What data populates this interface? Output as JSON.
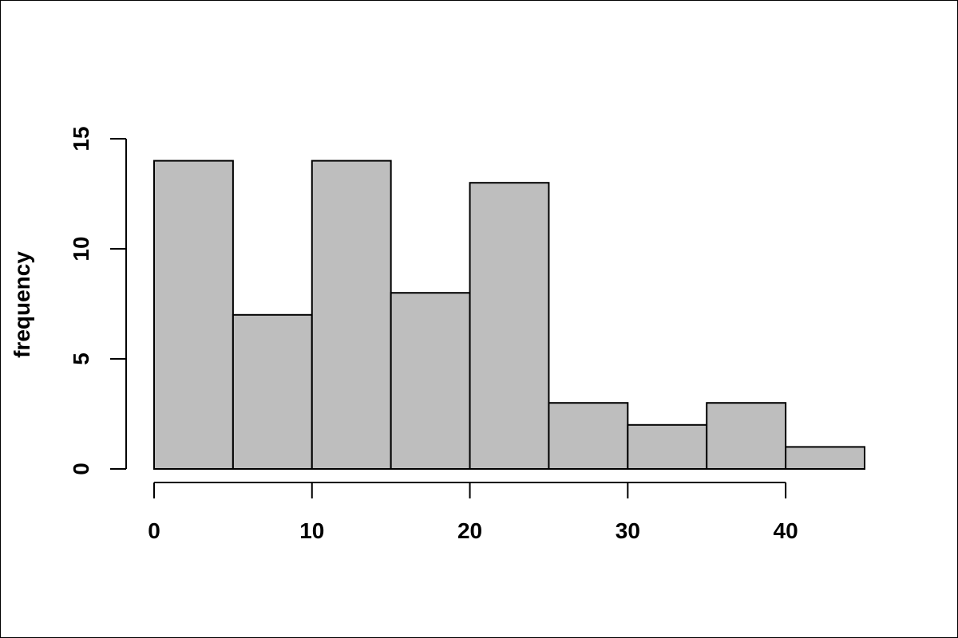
{
  "chart_data": {
    "type": "bar",
    "subtype": "histogram",
    "bins": [
      {
        "start": 0,
        "end": 5,
        "count": 14
      },
      {
        "start": 5,
        "end": 10,
        "count": 7
      },
      {
        "start": 10,
        "end": 15,
        "count": 14
      },
      {
        "start": 15,
        "end": 20,
        "count": 8
      },
      {
        "start": 20,
        "end": 25,
        "count": 13
      },
      {
        "start": 25,
        "end": 30,
        "count": 3
      },
      {
        "start": 30,
        "end": 35,
        "count": 2
      },
      {
        "start": 35,
        "end": 40,
        "count": 3
      },
      {
        "start": 40,
        "end": 45,
        "count": 1
      }
    ],
    "xlabel": "",
    "ylabel": "frequency",
    "xlim": [
      0,
      45
    ],
    "ylim": [
      0,
      15
    ],
    "x_ticks": [
      0,
      10,
      20,
      30,
      40
    ],
    "y_ticks": [
      0,
      5,
      10,
      15
    ],
    "grid": false,
    "colors": {
      "bar_fill": "#bebebe",
      "bar_stroke": "#000000",
      "axis": "#000000",
      "background": "#ffffff"
    }
  }
}
